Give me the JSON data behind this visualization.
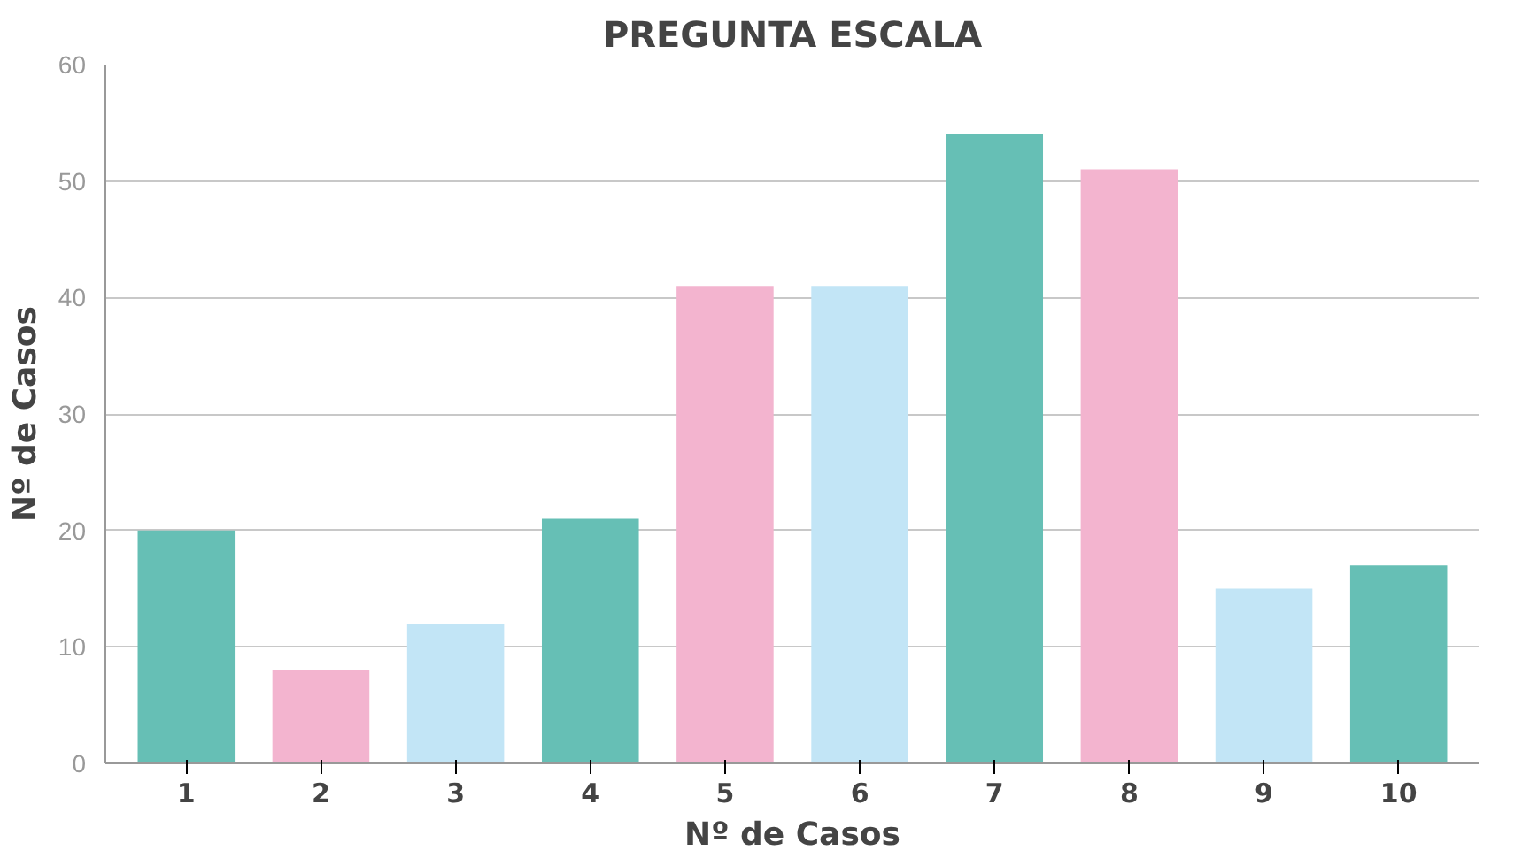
{
  "chart_data": {
    "type": "bar",
    "title": "PREGUNTA ESCALA",
    "xlabel": "Nº de Casos",
    "ylabel": "Nº de Casos",
    "categories": [
      "1",
      "2",
      "3",
      "4",
      "5",
      "6",
      "7",
      "8",
      "9",
      "10"
    ],
    "values": [
      20,
      8,
      12,
      21,
      41,
      41,
      54,
      51,
      15,
      17
    ],
    "colors": [
      "#66bfb5",
      "#f3b4cf",
      "#c2e5f6",
      "#66bfb5",
      "#f3b4cf",
      "#c2e5f6",
      "#66bfb5",
      "#f3b4cf",
      "#c2e5f6",
      "#66bfb5"
    ],
    "ylim": [
      0,
      60
    ],
    "yticks": [
      0,
      10,
      20,
      30,
      40,
      50,
      60
    ],
    "grid": "y"
  }
}
